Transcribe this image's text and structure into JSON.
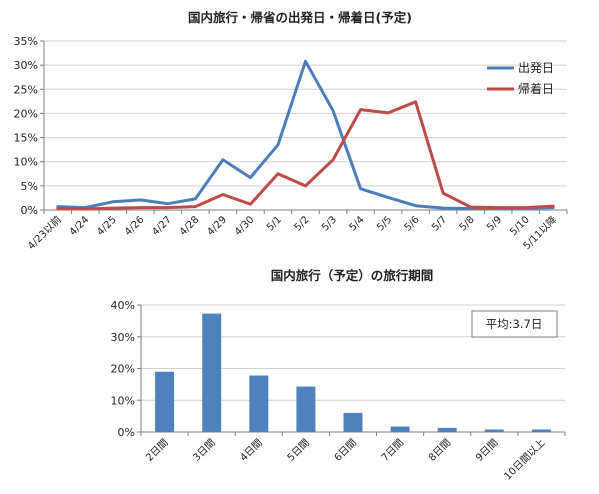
{
  "chart_data": [
    {
      "type": "line",
      "title": "国内旅行・帰省の出発日・帰着日(予定)",
      "categories": [
        "4/23以前",
        "4/24",
        "4/25",
        "4/26",
        "4/27",
        "4/28",
        "4/29",
        "4/30",
        "5/1",
        "5/2",
        "5/3",
        "5/4",
        "5/5",
        "5/6",
        "5/7",
        "5/8",
        "5/9",
        "5/10",
        "5/11以降"
      ],
      "series": [
        {
          "name": "出発日",
          "color": "#4a7ebb",
          "values": [
            0.7,
            0.5,
            1.7,
            2.1,
            1.3,
            2.3,
            10.4,
            6.7,
            13.5,
            30.8,
            20.6,
            4.4,
            2.6,
            0.9,
            0.4,
            0.3,
            0.4,
            0.4,
            0.5
          ]
        },
        {
          "name": "帰着日",
          "color": "#be4b48",
          "values": [
            0.3,
            0.2,
            0.4,
            0.5,
            0.5,
            0.7,
            3.2,
            1.2,
            7.5,
            5.0,
            10.4,
            20.8,
            20.1,
            22.4,
            3.5,
            0.6,
            0.5,
            0.5,
            0.8
          ]
        }
      ],
      "ylim": [
        0,
        35
      ],
      "yticks": [
        "0%",
        "5%",
        "10%",
        "15%",
        "20%",
        "25%",
        "30%",
        "35%"
      ],
      "grid": true,
      "legend": "right"
    },
    {
      "type": "bar",
      "title": "国内旅行（予定）の旅行期間",
      "categories": [
        "2日間",
        "3日間",
        "4日間",
        "5日間",
        "6日間",
        "7日間",
        "8日間",
        "9日間",
        "10日間以上"
      ],
      "values": [
        19.0,
        37.3,
        17.8,
        14.3,
        6.0,
        1.7,
        1.3,
        0.8,
        0.8
      ],
      "color": "#4f81bd",
      "ylim": [
        0,
        40
      ],
      "yticks": [
        "0%",
        "10%",
        "20%",
        "30%",
        "40%"
      ],
      "grid": true,
      "annotation": "平均:3.7日"
    }
  ]
}
